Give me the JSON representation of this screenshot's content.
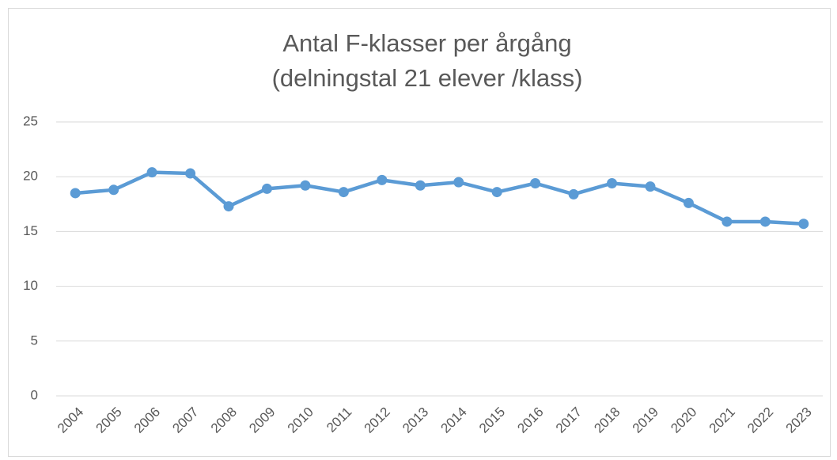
{
  "chart_data": {
    "type": "line",
    "title": "Antal F-klasser per årgång",
    "subtitle": "(delningstal 21 elever /klass)",
    "categories": [
      "2004",
      "2005",
      "2006",
      "2007",
      "2008",
      "2009",
      "2010",
      "2011",
      "2012",
      "2013",
      "2014",
      "2015",
      "2016",
      "2017",
      "2018",
      "2019",
      "2020",
      "2021",
      "2022",
      "2023"
    ],
    "series": [
      {
        "color": "#5b9bd5",
        "values": [
          18.5,
          18.8,
          20.4,
          20.3,
          17.3,
          18.9,
          19.2,
          18.6,
          19.7,
          19.2,
          19.5,
          18.6,
          19.4,
          18.4,
          19.4,
          19.1,
          17.6,
          15.9,
          15.9,
          15.7
        ]
      }
    ],
    "ylim": [
      0,
      25
    ],
    "yticks": [
      0,
      5,
      10,
      15,
      20,
      25
    ],
    "grid": true
  }
}
